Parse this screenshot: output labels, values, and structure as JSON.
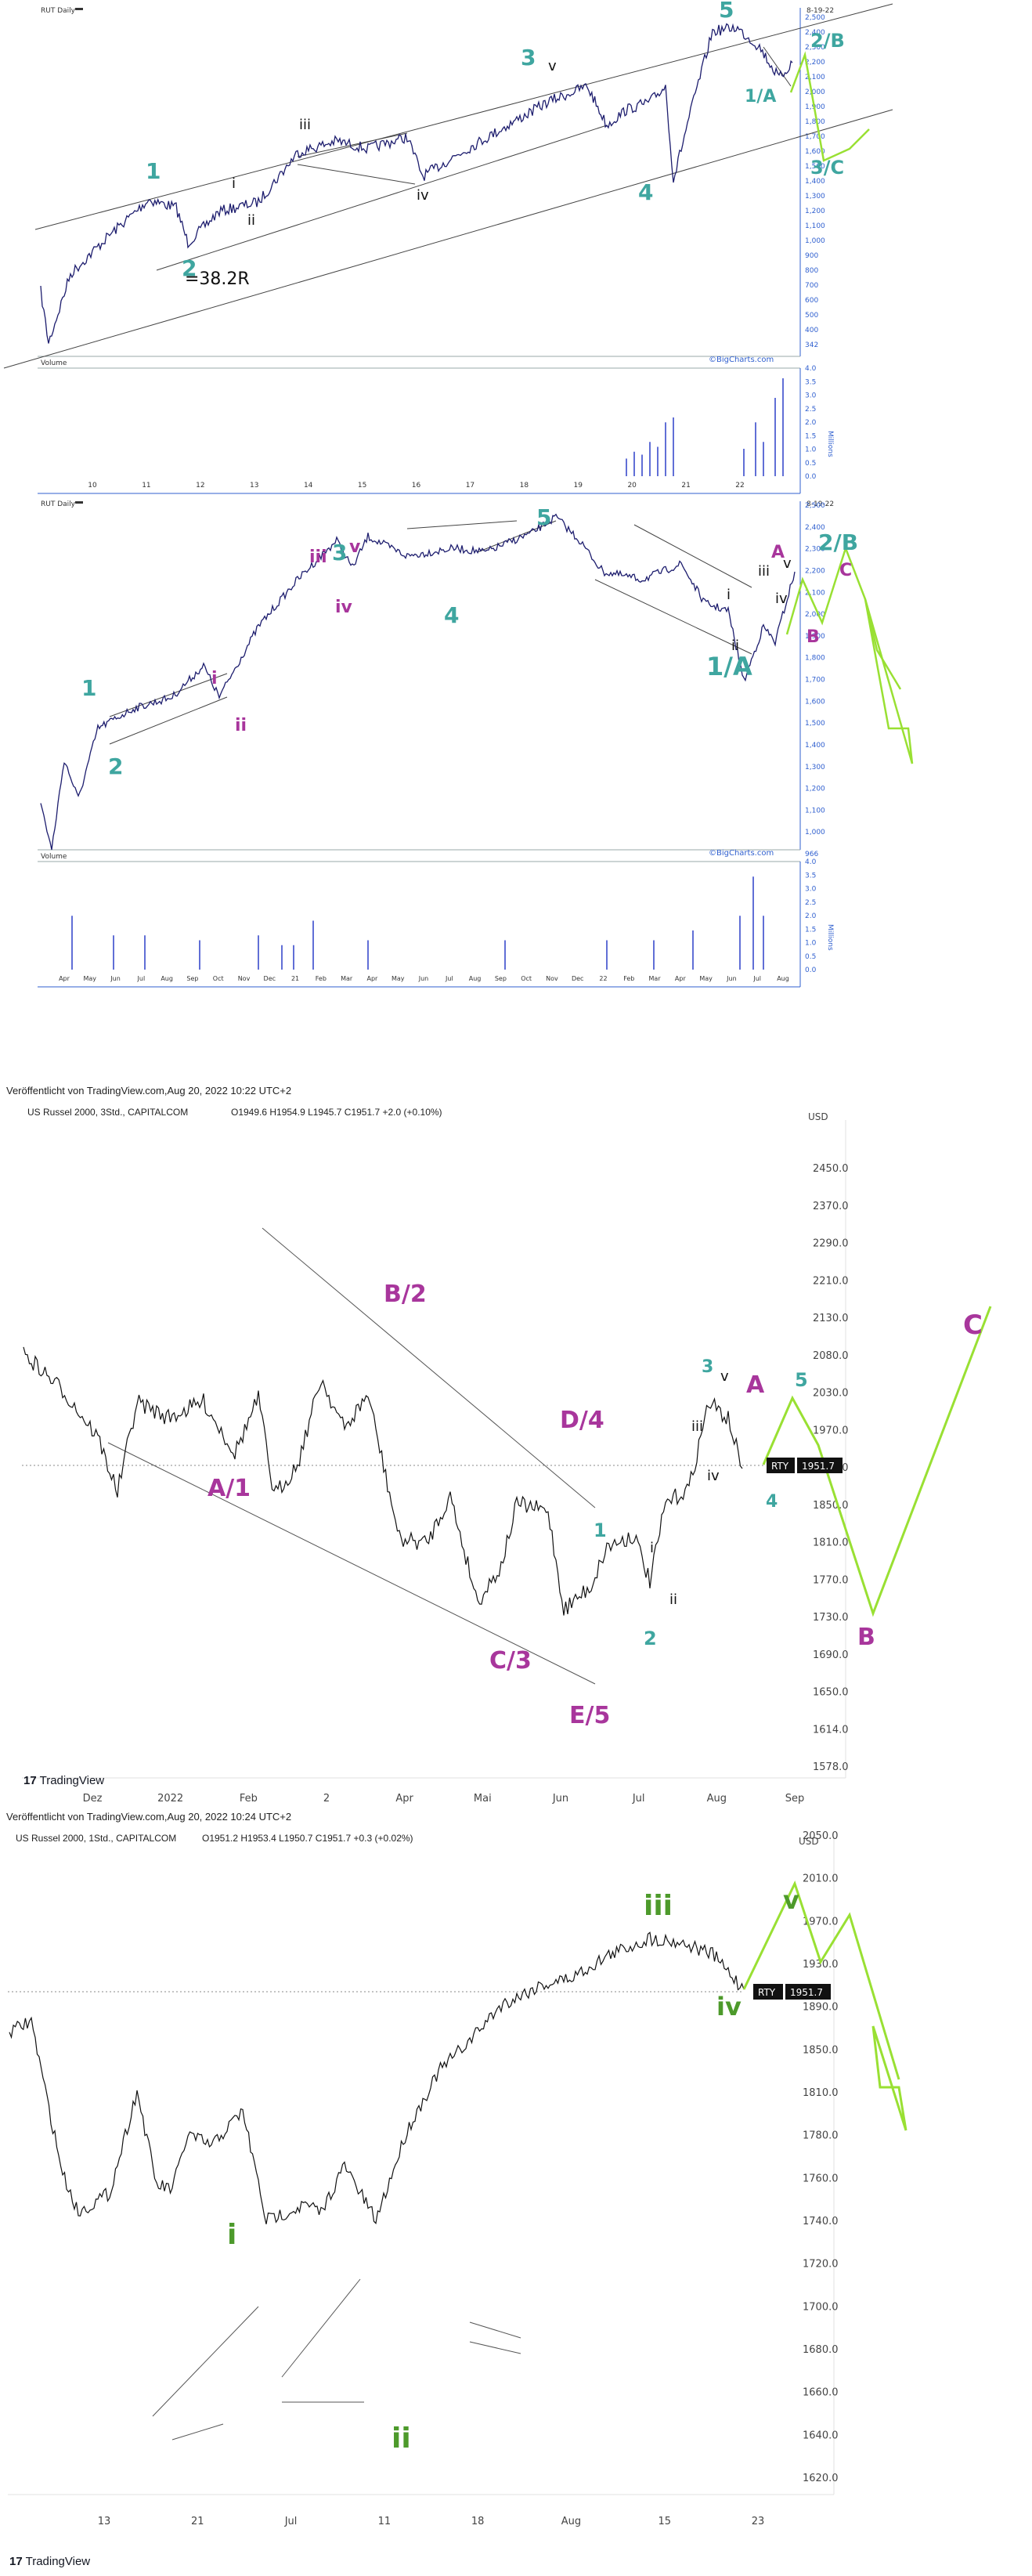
{
  "colors": {
    "teal": "#3fa6a0",
    "purple": "#a8369c",
    "green": "#4d9a2b",
    "lime": "#99e033",
    "price": "#1d1d6e",
    "volume": "#2c3fc8",
    "axis_blue": "#2f5fcf"
  },
  "chart_data": [
    {
      "id": "rut_daily_long",
      "type": "line",
      "title": "RUT Daily",
      "date_label": "8-19-22",
      "credit": "©BigCharts.com",
      "x_ticks": [
        "10",
        "11",
        "12",
        "13",
        "14",
        "15",
        "16",
        "17",
        "18",
        "19",
        "20",
        "21",
        "22"
      ],
      "y_ticks": [
        "2,500",
        "2,400",
        "2,300",
        "2,200",
        "2,100",
        "2,000",
        "1,900",
        "1,800",
        "1,700",
        "1,600",
        "1,500",
        "1,400",
        "1,300",
        "1,200",
        "1,100",
        "1,000",
        "900",
        "800",
        "700",
        "600",
        "500",
        "400",
        "342"
      ],
      "scale": "log",
      "wave_labels": [
        {
          "text": "1",
          "color": "teal"
        },
        {
          "text": "2",
          "color": "teal"
        },
        {
          "text": "=38.2R",
          "color": "black"
        },
        {
          "text": "i",
          "color": "black"
        },
        {
          "text": "ii",
          "color": "black"
        },
        {
          "text": "iii",
          "color": "black"
        },
        {
          "text": "iv",
          "color": "black"
        },
        {
          "text": "v",
          "color": "black"
        },
        {
          "text": "3",
          "color": "teal"
        },
        {
          "text": "4",
          "color": "teal"
        },
        {
          "text": "5",
          "color": "teal"
        },
        {
          "text": "1/A",
          "color": "teal"
        },
        {
          "text": "2/B",
          "color": "teal"
        },
        {
          "text": "3/C",
          "color": "teal"
        }
      ],
      "volume": {
        "label": "Volume",
        "units": "Millions",
        "y_ticks": [
          "4.0",
          "3.5",
          "3.0",
          "2.5",
          "2.0",
          "1.5",
          "1.0",
          "0.5",
          "0.0"
        ]
      }
    },
    {
      "id": "rut_daily_recent",
      "type": "line",
      "title": "RUT Daily",
      "date_label": "8-19-22",
      "credit": "©BigCharts.com",
      "x_ticks": [
        "Apr",
        "May",
        "Jun",
        "Jul",
        "Aug",
        "Sep",
        "Oct",
        "Nov",
        "Dec",
        "21",
        "Feb",
        "Mar",
        "Apr",
        "May",
        "Jun",
        "Jul",
        "Aug",
        "Sep",
        "Oct",
        "Nov",
        "Dec",
        "22",
        "Feb",
        "Mar",
        "Apr",
        "May",
        "Jun",
        "Jul",
        "Aug"
      ],
      "y_ticks": [
        "2,500",
        "2,400",
        "2,300",
        "2,200",
        "2,100",
        "2,000",
        "1,900",
        "1,800",
        "1,700",
        "1,600",
        "1,500",
        "1,400",
        "1,300",
        "1,200",
        "1,100",
        "1,000",
        "966"
      ],
      "scale": "log",
      "wave_labels": [
        {
          "text": "1",
          "color": "teal"
        },
        {
          "text": "2",
          "color": "teal"
        },
        {
          "text": "i",
          "color": "purple"
        },
        {
          "text": "ii",
          "color": "purple"
        },
        {
          "text": "iii",
          "color": "purple"
        },
        {
          "text": "iv",
          "color": "purple"
        },
        {
          "text": "3",
          "color": "teal"
        },
        {
          "text": "v",
          "color": "purple"
        },
        {
          "text": "4",
          "color": "teal"
        },
        {
          "text": "5",
          "color": "teal"
        },
        {
          "text": "1/A",
          "color": "teal"
        },
        {
          "text": "i",
          "color": "black"
        },
        {
          "text": "ii",
          "color": "black"
        },
        {
          "text": "iii",
          "color": "black"
        },
        {
          "text": "iv",
          "color": "black"
        },
        {
          "text": "v",
          "color": "black"
        },
        {
          "text": "A",
          "color": "purple"
        },
        {
          "text": "B",
          "color": "purple"
        },
        {
          "text": "2/B",
          "color": "teal"
        },
        {
          "text": "C",
          "color": "purple"
        }
      ],
      "volume": {
        "label": "Volume",
        "units": "Millions",
        "y_ticks": [
          "4.0",
          "3.5",
          "3.0",
          "2.5",
          "2.0",
          "1.5",
          "1.0",
          "0.5",
          "0.0"
        ]
      }
    },
    {
      "id": "tv_3std",
      "type": "line",
      "published": "Veröffentlicht von TradingView.com,Aug 20, 2022 10:22 UTC+2",
      "title": "US Russel 2000, 3Std., CAPITALCOM",
      "ohlc": "O1949.6 H1954.9 L1945.7 C1951.7 +2.0 (+0.10%)",
      "currency": "USD",
      "x_ticks": [
        "Dez",
        "2022",
        "Feb",
        "2",
        "Apr",
        "Mai",
        "Jun",
        "Jul",
        "Aug",
        "Sep"
      ],
      "y_ticks": [
        "2450.0",
        "2370.0",
        "2290.0",
        "2210.0",
        "2130.0",
        "2080.0",
        "2030.0",
        "1970.0",
        "1910.0",
        "1850.0",
        "1810.0",
        "1770.0",
        "1730.0",
        "1690.0",
        "1650.0",
        "1614.0",
        "1578.0"
      ],
      "last_price": "1951.7",
      "symbol": "RTY",
      "logo": "TradingView",
      "wave_labels": [
        {
          "text": "A/1",
          "color": "purple"
        },
        {
          "text": "B/2",
          "color": "purple"
        },
        {
          "text": "C/3",
          "color": "purple"
        },
        {
          "text": "D/4",
          "color": "purple"
        },
        {
          "text": "E/5",
          "color": "purple"
        },
        {
          "text": "1",
          "color": "teal"
        },
        {
          "text": "2",
          "color": "teal"
        },
        {
          "text": "i",
          "color": "black"
        },
        {
          "text": "ii",
          "color": "black"
        },
        {
          "text": "iii",
          "color": "black"
        },
        {
          "text": "iv",
          "color": "black"
        },
        {
          "text": "v",
          "color": "black"
        },
        {
          "text": "3",
          "color": "teal"
        },
        {
          "text": "4",
          "color": "teal"
        },
        {
          "text": "5",
          "color": "teal"
        },
        {
          "text": "A",
          "color": "purple"
        },
        {
          "text": "B",
          "color": "purple"
        },
        {
          "text": "C",
          "color": "purple"
        }
      ]
    },
    {
      "id": "tv_1std",
      "type": "line",
      "published": "Veröffentlicht von TradingView.com,Aug 20, 2022 10:24 UTC+2",
      "title": "US Russel 2000, 1Std., CAPITALCOM",
      "ohlc": "O1951.2 H1953.4 L1950.7 C1951.7 +0.3 (+0.02%)",
      "currency": "USD",
      "x_ticks": [
        "13",
        "21",
        "Jul",
        "11",
        "18",
        "Aug",
        "15",
        "23"
      ],
      "y_ticks": [
        "2050.0",
        "2010.0",
        "1970.0",
        "1930.0",
        "1890.0",
        "1850.0",
        "1810.0",
        "1780.0",
        "1760.0",
        "1740.0",
        "1720.0",
        "1700.0",
        "1680.0",
        "1660.0",
        "1640.0",
        "1620.0"
      ],
      "last_price": "1951.7",
      "symbol": "RTY",
      "logo": "TradingView",
      "wave_labels": [
        {
          "text": "i",
          "color": "green"
        },
        {
          "text": "ii",
          "color": "green"
        },
        {
          "text": "iii",
          "color": "green"
        },
        {
          "text": "iv",
          "color": "green"
        },
        {
          "text": "v",
          "color": "green"
        }
      ]
    }
  ]
}
